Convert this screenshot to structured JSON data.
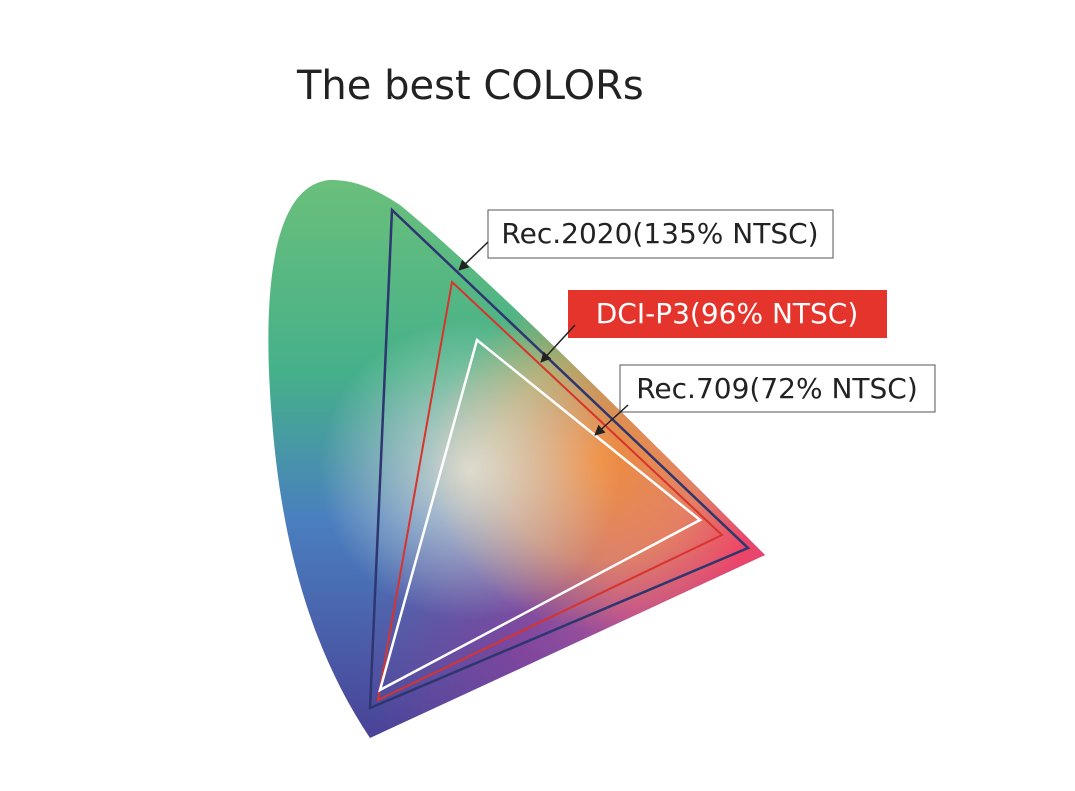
{
  "title": "The best COLORs",
  "labels": [
    {
      "text": "Rec.2020(135% NTSC)"
    },
    {
      "text": "DCI-P3(96% NTSC)"
    },
    {
      "text": "Rec.709(72% NTSC)"
    }
  ]
}
